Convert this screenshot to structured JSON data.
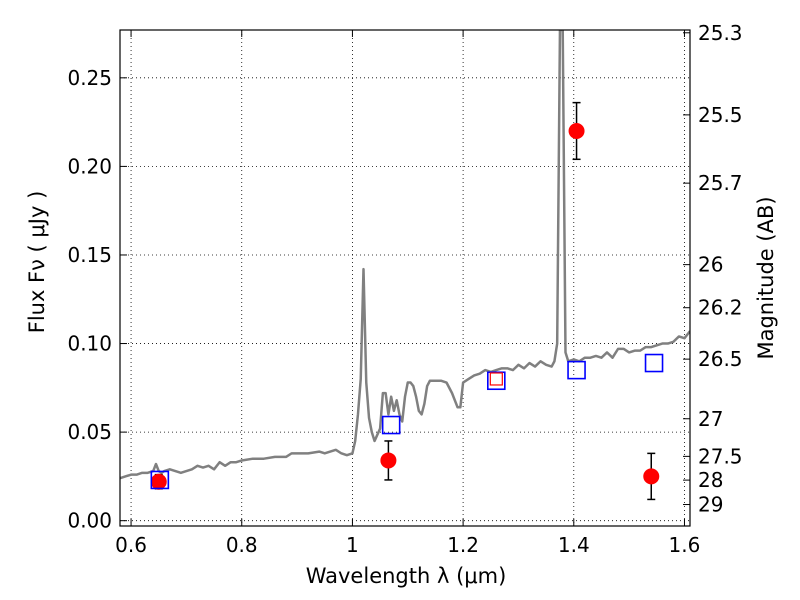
{
  "chart_data": {
    "type": "scatter",
    "xlabel": "Wavelength  λ (μm)",
    "ylabel": "Flux  Fν  ( μJy )",
    "y2label": "Magnitude (AB)",
    "xlim": [
      0.58,
      1.61
    ],
    "ylim": [
      -0.003,
      0.277
    ],
    "grid": true,
    "x_ticks": [
      0.6,
      0.8,
      1.0,
      1.2,
      1.4,
      1.6
    ],
    "x_tick_labels": [
      "0.6",
      "0.8",
      "1",
      "1.2",
      "1.4",
      "1.6"
    ],
    "y_ticks": [
      0.0,
      0.05,
      0.1,
      0.15,
      0.2,
      0.25
    ],
    "y_tick_labels": [
      "0.00",
      "0.05",
      "0.10",
      "0.15",
      "0.20",
      "0.25"
    ],
    "y2_ticks": [
      25.3,
      25.5,
      25.7,
      26,
      26.2,
      26.5,
      27,
      27.5,
      28,
      29
    ],
    "y2_tick_labels": [
      "25.3",
      "25.5",
      "25.7",
      "26",
      "26.2",
      "26.5",
      "27",
      "27.5",
      "28",
      "29"
    ],
    "series": [
      {
        "kind": "line",
        "color": "#808080",
        "x": [
          0.58,
          0.6,
          0.61,
          0.62,
          0.63,
          0.64,
          0.645,
          0.65,
          0.655,
          0.66,
          0.67,
          0.68,
          0.69,
          0.7,
          0.71,
          0.72,
          0.73,
          0.74,
          0.75,
          0.76,
          0.77,
          0.78,
          0.79,
          0.8,
          0.82,
          0.84,
          0.86,
          0.88,
          0.89,
          0.9,
          0.92,
          0.94,
          0.95,
          0.96,
          0.97,
          0.98,
          0.99,
          1.0,
          1.005,
          1.01,
          1.015,
          1.02,
          1.025,
          1.03,
          1.035,
          1.04,
          1.05,
          1.055,
          1.06,
          1.065,
          1.07,
          1.075,
          1.08,
          1.085,
          1.09,
          1.095,
          1.1,
          1.105,
          1.11,
          1.115,
          1.12,
          1.125,
          1.13,
          1.135,
          1.14,
          1.145,
          1.15,
          1.16,
          1.17,
          1.18,
          1.19,
          1.195,
          1.2,
          1.21,
          1.22,
          1.23,
          1.24,
          1.25,
          1.26,
          1.27,
          1.28,
          1.29,
          1.3,
          1.31,
          1.32,
          1.33,
          1.34,
          1.35,
          1.36,
          1.365,
          1.37,
          1.375,
          1.38,
          1.385,
          1.39,
          1.4,
          1.41,
          1.42,
          1.43,
          1.44,
          1.45,
          1.46,
          1.47,
          1.48,
          1.49,
          1.5,
          1.51,
          1.52,
          1.53,
          1.54,
          1.55,
          1.56,
          1.57,
          1.58,
          1.59,
          1.6,
          1.61
        ],
        "y": [
          0.024,
          0.026,
          0.026,
          0.027,
          0.027,
          0.028,
          0.032,
          0.028,
          0.027,
          0.028,
          0.029,
          0.028,
          0.027,
          0.028,
          0.029,
          0.031,
          0.03,
          0.031,
          0.029,
          0.033,
          0.031,
          0.033,
          0.033,
          0.034,
          0.035,
          0.035,
          0.036,
          0.036,
          0.038,
          0.038,
          0.038,
          0.039,
          0.038,
          0.039,
          0.04,
          0.038,
          0.037,
          0.038,
          0.045,
          0.06,
          0.08,
          0.142,
          0.078,
          0.058,
          0.05,
          0.045,
          0.052,
          0.072,
          0.072,
          0.06,
          0.07,
          0.062,
          0.068,
          0.06,
          0.056,
          0.07,
          0.078,
          0.078,
          0.076,
          0.07,
          0.062,
          0.06,
          0.066,
          0.076,
          0.079,
          0.079,
          0.079,
          0.079,
          0.078,
          0.072,
          0.064,
          0.064,
          0.078,
          0.08,
          0.082,
          0.083,
          0.085,
          0.084,
          0.085,
          0.086,
          0.086,
          0.085,
          0.088,
          0.086,
          0.089,
          0.087,
          0.09,
          0.088,
          0.087,
          0.09,
          0.1,
          0.277,
          0.277,
          0.095,
          0.09,
          0.091,
          0.09,
          0.092,
          0.092,
          0.093,
          0.092,
          0.095,
          0.092,
          0.097,
          0.097,
          0.095,
          0.096,
          0.096,
          0.098,
          0.098,
          0.099,
          0.1,
          0.1,
          0.101,
          0.104,
          0.103,
          0.107
        ]
      },
      {
        "kind": "points",
        "marker": "circle",
        "color": "#ff0000",
        "x": [
          0.65,
          1.065,
          1.405,
          1.54
        ],
        "y": [
          0.022,
          0.034,
          0.22,
          0.025
        ],
        "yerr": [
          0.004,
          0.011,
          0.016,
          0.013
        ]
      },
      {
        "kind": "points",
        "marker": "square",
        "color": "#0000ff",
        "x": [
          0.652,
          1.07,
          1.26,
          1.405,
          1.545
        ],
        "y": [
          0.023,
          0.054,
          0.079,
          0.085,
          0.089
        ]
      },
      {
        "kind": "points",
        "marker": "square-small",
        "color": "#ff0000",
        "x": [
          1.26
        ],
        "y": [
          0.08
        ]
      }
    ]
  }
}
